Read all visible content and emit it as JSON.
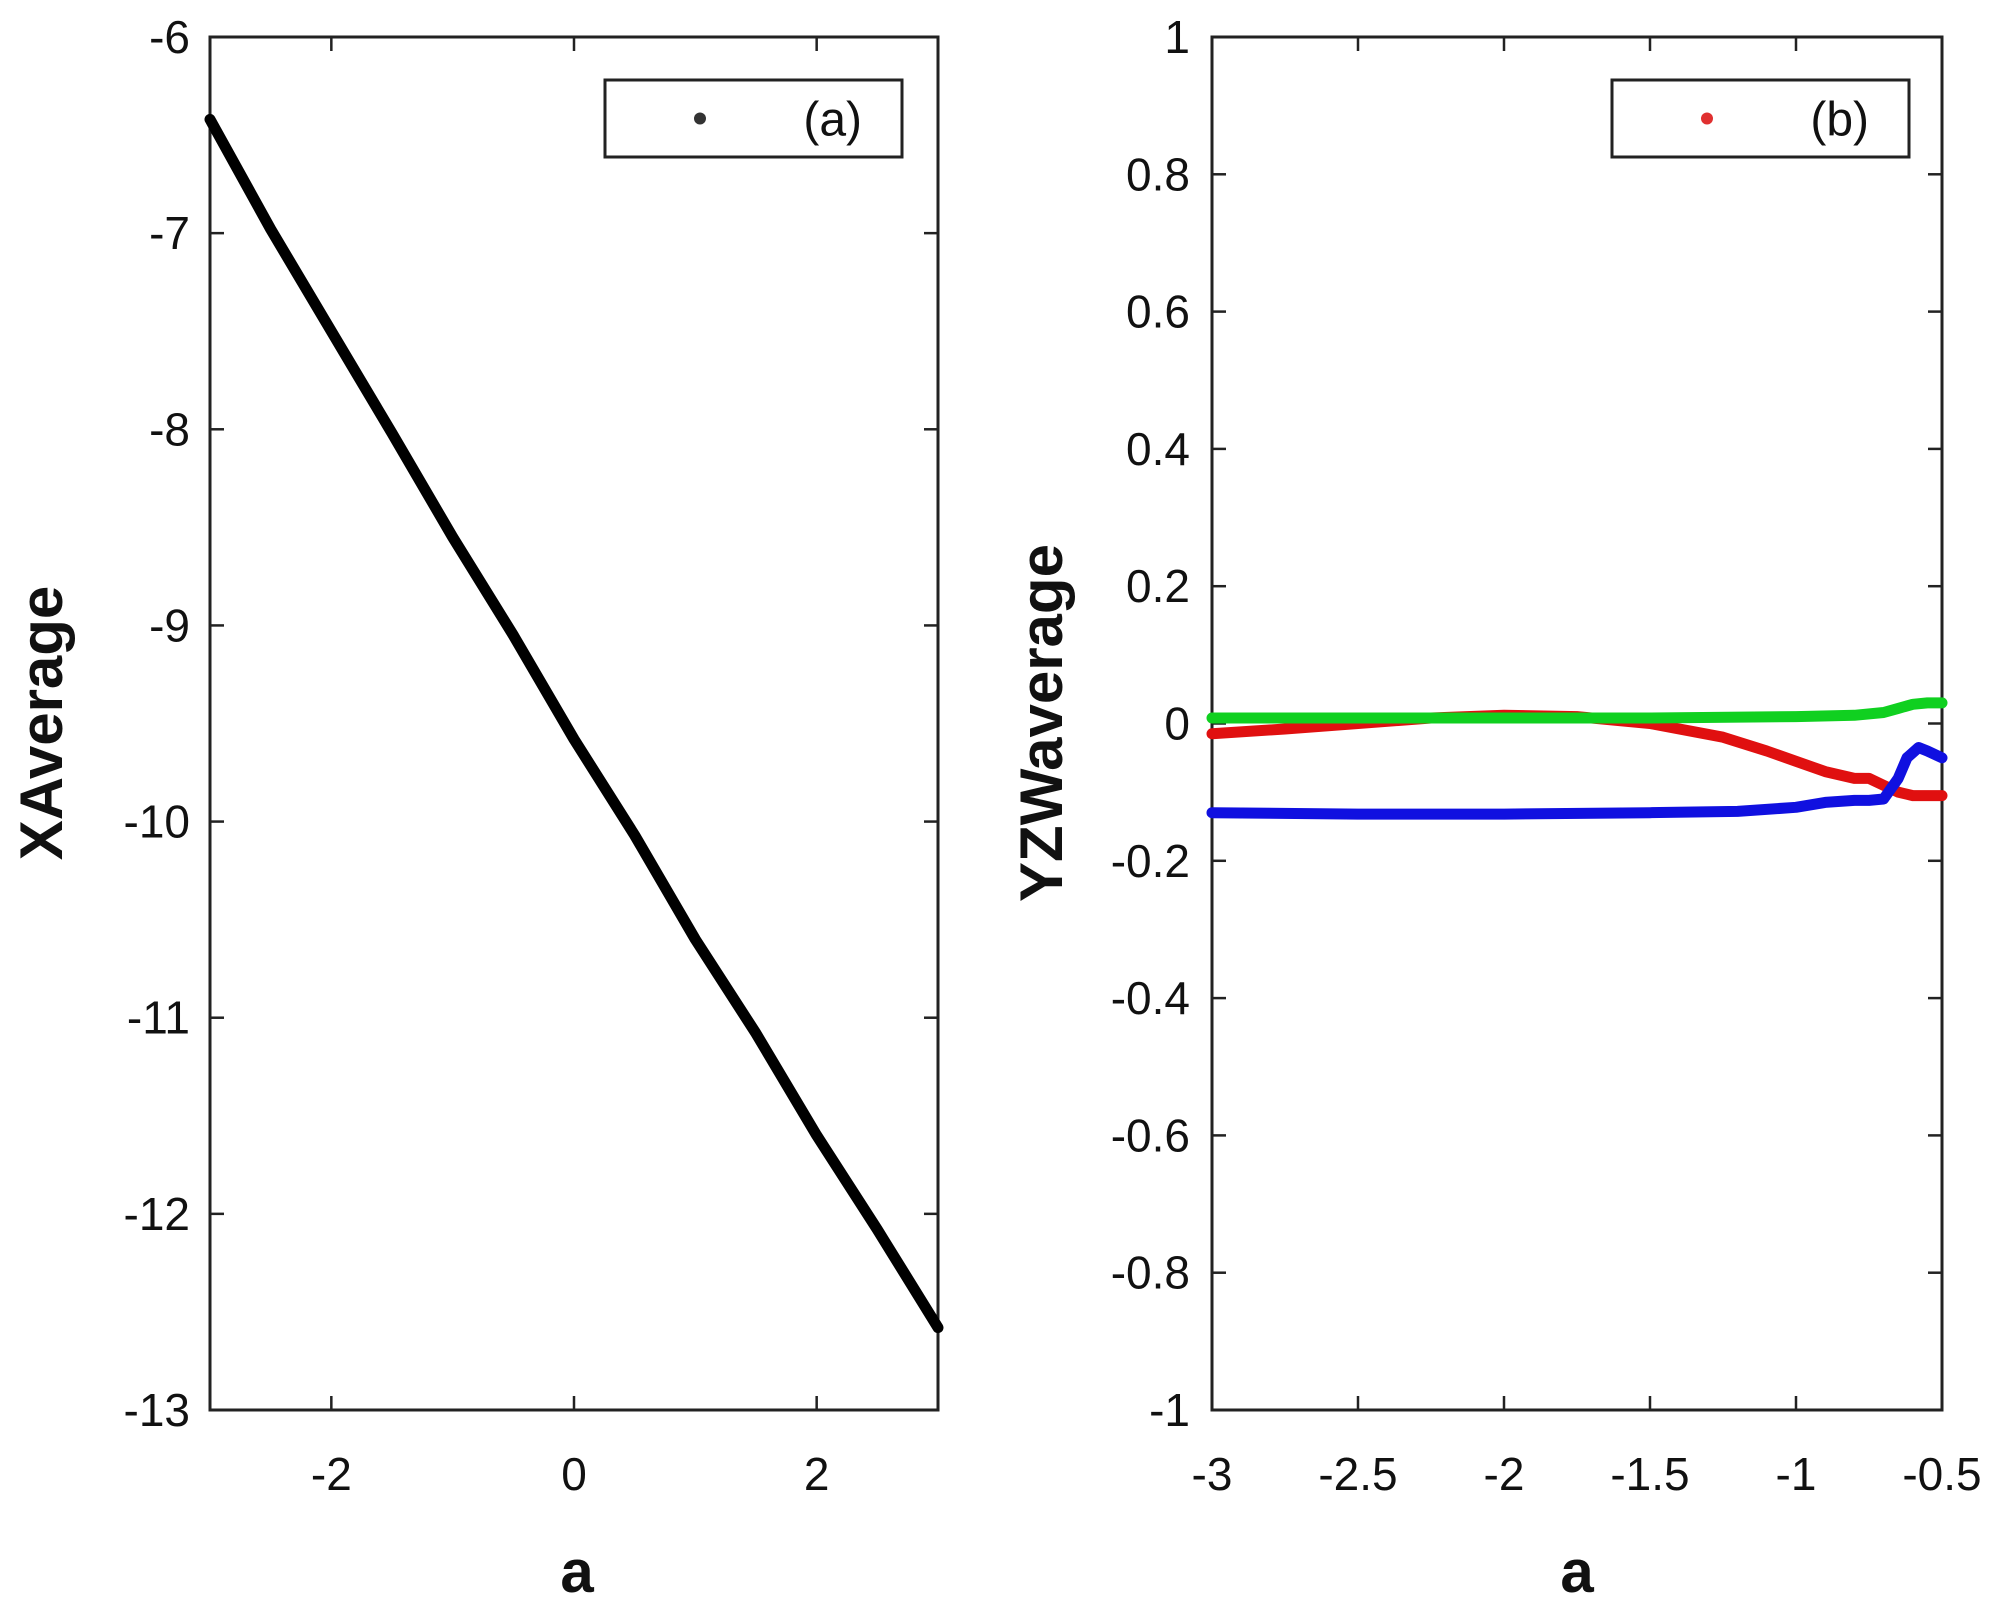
{
  "chart_data": [
    {
      "type": "line",
      "panel": "left",
      "xlabel": "a",
      "ylabel": "XAverage",
      "xlim": [
        -3,
        3
      ],
      "ylim": [
        -13,
        -6
      ],
      "xticks": [
        -2,
        0,
        2
      ],
      "xtick_labels": [
        "-2",
        "0",
        "2"
      ],
      "yticks": [
        -13,
        -12,
        -11,
        -10,
        -9,
        -8,
        -7,
        -6
      ],
      "ytick_labels": [
        "-13",
        "-12",
        "-11",
        "-10",
        "-9",
        "-8",
        "-7",
        "-6"
      ],
      "legend": {
        "label": "(a)",
        "marker_color": "#333333",
        "position": "top-right"
      },
      "series": [
        {
          "name": "XAverage",
          "color": "#000000",
          "x": [
            -3,
            -2.5,
            -2,
            -1.5,
            -1,
            -0.5,
            0,
            0.5,
            1,
            1.5,
            2,
            2.5,
            3
          ],
          "y": [
            -6.42,
            -6.98,
            -7.5,
            -8.02,
            -8.55,
            -9.05,
            -9.58,
            -10.07,
            -10.6,
            -11.08,
            -11.6,
            -12.08,
            -12.58
          ]
        }
      ]
    },
    {
      "type": "line",
      "panel": "right",
      "xlabel": "a",
      "ylabel": "YZWaverage",
      "xlim": [
        -3,
        -0.5
      ],
      "ylim": [
        -1,
        1
      ],
      "xticks": [
        -3,
        -2.5,
        -2,
        -1.5,
        -1,
        -0.5
      ],
      "xtick_labels": [
        "-3",
        "-2.5",
        "-2",
        "-1.5",
        "-1",
        "-0.5"
      ],
      "yticks": [
        -1,
        -0.8,
        -0.6,
        -0.4,
        -0.2,
        0,
        0.2,
        0.4,
        0.6,
        0.8,
        1
      ],
      "ytick_labels": [
        "-1",
        "-0.8",
        "-0.6",
        "-0.4",
        "-0.2",
        "0",
        "0.2",
        "0.4",
        "0.6",
        "0.8",
        "1"
      ],
      "legend": {
        "label": "(b)",
        "marker_color": "#e03030",
        "position": "top-right"
      },
      "series": [
        {
          "name": "red",
          "color": "#e01010",
          "x": [
            -3,
            -2.75,
            -2.5,
            -2.25,
            -2,
            -1.75,
            -1.5,
            -1.25,
            -1.1,
            -1,
            -0.9,
            -0.8,
            -0.75,
            -0.7,
            -0.65,
            -0.6,
            -0.5
          ],
          "y": [
            -0.015,
            -0.008,
            0.0,
            0.008,
            0.012,
            0.01,
            0.0,
            -0.02,
            -0.04,
            -0.055,
            -0.07,
            -0.08,
            -0.08,
            -0.09,
            -0.1,
            -0.105,
            -0.105
          ]
        },
        {
          "name": "blue",
          "color": "#1010e0",
          "x": [
            -3,
            -2.5,
            -2,
            -1.5,
            -1.2,
            -1,
            -0.9,
            -0.8,
            -0.75,
            -0.7,
            -0.65,
            -0.62,
            -0.58,
            -0.55,
            -0.5
          ],
          "y": [
            -0.13,
            -0.132,
            -0.132,
            -0.13,
            -0.128,
            -0.122,
            -0.115,
            -0.112,
            -0.112,
            -0.11,
            -0.08,
            -0.05,
            -0.035,
            -0.04,
            -0.05
          ]
        },
        {
          "name": "green",
          "color": "#10d020",
          "x": [
            -3,
            -2.5,
            -2,
            -1.5,
            -1,
            -0.8,
            -0.7,
            -0.65,
            -0.6,
            -0.55,
            -0.5
          ],
          "y": [
            0.008,
            0.008,
            0.008,
            0.008,
            0.01,
            0.012,
            0.016,
            0.022,
            0.028,
            0.03,
            0.03
          ]
        }
      ]
    }
  ]
}
